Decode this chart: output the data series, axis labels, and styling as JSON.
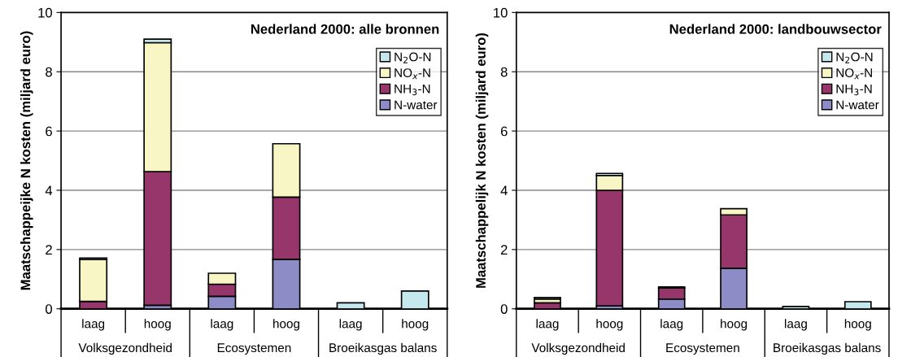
{
  "chart_data": [
    {
      "type": "bar",
      "stacked": true,
      "title": "Nederland 2000: alle bronnen",
      "ylabel": "Maatschappeijke N kosten (miljard euro)",
      "categories": [
        "laag",
        "hoog",
        "laag",
        "hoog",
        "laag",
        "hoog"
      ],
      "annotations": [
        "Volksgezondheid",
        "Ecosystemen",
        "Broeikasgas balans"
      ],
      "series": [
        {
          "name": "N-water",
          "color": "#8d8cc6",
          "values": [
            null,
            0.12,
            0.42,
            1.67,
            null,
            null
          ]
        },
        {
          "name": "NH$_{3}$-N",
          "color": "#96366a",
          "values": [
            0.25,
            4.51,
            0.41,
            2.1,
            null,
            null
          ]
        },
        {
          "name": "NO$_{x}$-N",
          "color": "#f8f6c4",
          "values": [
            1.41,
            4.35,
            0.37,
            1.8,
            null,
            null
          ]
        },
        {
          "name": "N$_{2}$O-N",
          "color": "#c5e8ef",
          "values": [
            0.05,
            0.12,
            null,
            null,
            0.2,
            0.6
          ]
        }
      ],
      "ylim": [
        0,
        10
      ],
      "yticks": [
        0,
        2,
        4,
        6,
        8,
        10
      ],
      "grid": "y",
      "legend": "top right"
    },
    {
      "type": "bar",
      "stacked": true,
      "title": "Nederland 2000: landbouwsector",
      "ylabel": "Maatschappelijk N kosten (miljard euro)",
      "categories": [
        "laag",
        "hoog",
        "laag",
        "hoog",
        "laag",
        "hoog"
      ],
      "annotations": [
        "Volksgezondheid",
        "Ecosystemen",
        "Broeikasgas balans"
      ],
      "series": [
        {
          "name": "N-water",
          "color": "#8d8cc6",
          "values": [
            null,
            0.1,
            0.33,
            1.37,
            null,
            null
          ]
        },
        {
          "name": "NH$_{3}$-N",
          "color": "#96366a",
          "values": [
            0.2,
            3.9,
            0.37,
            1.8,
            null,
            null
          ]
        },
        {
          "name": "NO$_{x}$-N",
          "color": "#f8f6c4",
          "values": [
            0.13,
            0.5,
            0.04,
            0.21,
            null,
            null
          ]
        },
        {
          "name": "N$_{2}$O-N",
          "color": "#c5e8ef",
          "values": [
            0.05,
            0.07,
            null,
            null,
            0.08,
            0.24
          ]
        }
      ],
      "ylim": [
        0,
        10
      ],
      "yticks": [
        0,
        2,
        4,
        6,
        8,
        10
      ],
      "grid": "y",
      "legend": "top right"
    }
  ]
}
